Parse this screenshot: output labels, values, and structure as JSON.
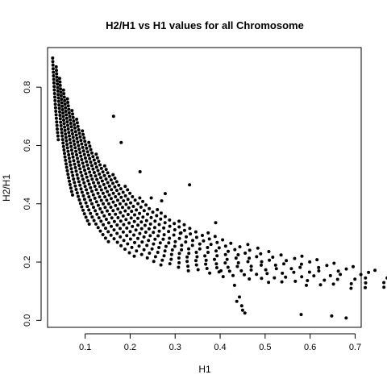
{
  "chart_data": {
    "type": "scatter",
    "title": "H2/H1 vs H1 values for all Chromosome",
    "xlabel": "H1",
    "ylabel": "H2/H1",
    "xlim": [
      0.0165,
      0.7135
    ],
    "ylim": [
      -0.024,
      0.936
    ],
    "xticks": [
      0.1,
      0.2,
      0.3,
      0.4,
      0.5,
      0.6,
      0.7
    ],
    "xtick_labels": [
      "0.1",
      "0.2",
      "0.3",
      "0.4",
      "0.5",
      "0.6",
      "0.7"
    ],
    "yticks": [
      0.0,
      0.2,
      0.4,
      0.6,
      0.8
    ],
    "ytick_labels": [
      "0.0",
      "0.2",
      "0.4",
      "0.6",
      "0.8"
    ],
    "grid": false,
    "marker_color": "#000000",
    "curve_family": {
      "description_values": "points lie on a family of hyperbola-like bands y = k / x",
      "k_values": [
        0.025,
        0.031,
        0.036,
        0.041,
        0.046,
        0.051,
        0.056,
        0.061,
        0.066,
        0.071,
        0.076,
        0.081,
        0.087,
        0.093,
        0.099,
        0.105,
        0.112,
        0.12,
        0.128
      ],
      "y_max": [
        0.9,
        0.87,
        0.83,
        0.79,
        0.76,
        0.72,
        0.69,
        0.65,
        0.61,
        0.57,
        0.53,
        0.5,
        0.46,
        0.42,
        0.38,
        0.34,
        0.3,
        0.26,
        0.22
      ],
      "y_min": [
        0.62,
        0.43,
        0.33,
        0.27,
        0.22,
        0.19,
        0.17,
        0.15,
        0.13,
        0.12,
        0.11,
        0.1,
        0.09,
        0.08,
        0.07,
        0.06,
        0.05,
        0.045,
        0.04
      ]
    },
    "extra_points": [
      {
        "x": 0.163,
        "y": 0.7
      },
      {
        "x": 0.18,
        "y": 0.61
      },
      {
        "x": 0.222,
        "y": 0.51
      },
      {
        "x": 0.247,
        "y": 0.42
      },
      {
        "x": 0.27,
        "y": 0.41
      },
      {
        "x": 0.278,
        "y": 0.435
      },
      {
        "x": 0.332,
        "y": 0.465
      },
      {
        "x": 0.313,
        "y": 0.3
      },
      {
        "x": 0.39,
        "y": 0.335
      },
      {
        "x": 0.402,
        "y": 0.17
      },
      {
        "x": 0.432,
        "y": 0.12
      },
      {
        "x": 0.437,
        "y": 0.065
      },
      {
        "x": 0.443,
        "y": 0.08
      },
      {
        "x": 0.448,
        "y": 0.05
      },
      {
        "x": 0.455,
        "y": 0.025
      },
      {
        "x": 0.45,
        "y": 0.035
      },
      {
        "x": 0.58,
        "y": 0.02
      },
      {
        "x": 0.648,
        "y": 0.015
      },
      {
        "x": 0.68,
        "y": 0.008
      }
    ]
  }
}
